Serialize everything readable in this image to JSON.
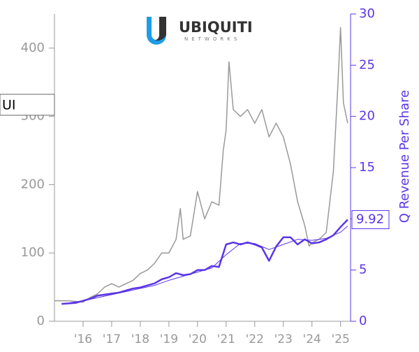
{
  "chart_data": {
    "type": "line",
    "logo": {
      "name": "UBIQUITI",
      "sub": "NETWORKS"
    },
    "annotation": "UI",
    "y2label": "Q Revenue Per Share",
    "xlim": [
      2015,
      2025.35
    ],
    "xticks": [
      {
        "value": 2016,
        "label": "'16"
      },
      {
        "value": 2017,
        "label": "'17"
      },
      {
        "value": 2018,
        "label": "'18"
      },
      {
        "value": 2019,
        "label": "'19"
      },
      {
        "value": 2020,
        "label": "'20"
      },
      {
        "value": 2021,
        "label": "'21"
      },
      {
        "value": 2022,
        "label": "'22"
      },
      {
        "value": 2023,
        "label": "'23"
      },
      {
        "value": 2024,
        "label": "'24"
      },
      {
        "value": 2025,
        "label": "'25"
      }
    ],
    "ylim": [
      0,
      450
    ],
    "yticks": [
      0,
      100,
      200,
      300,
      400
    ],
    "y2lim": [
      0,
      30
    ],
    "y2ticks": [
      0,
      5,
      10,
      15,
      20,
      25,
      30
    ],
    "series": [
      {
        "color": "#999999",
        "width": 1.5,
        "x": [
          2015.0,
          2015.5,
          2016.0,
          2016.25,
          2016.5,
          2016.75,
          2017.0,
          2017.25,
          2017.5,
          2017.75,
          2018.0,
          2018.25,
          2018.5,
          2018.75,
          2019.0,
          2019.25,
          2019.4,
          2019.5,
          2019.75,
          2020.0,
          2020.25,
          2020.5,
          2020.75,
          2020.9,
          2021.0,
          2021.1,
          2021.25,
          2021.5,
          2021.75,
          2022.0,
          2022.25,
          2022.5,
          2022.75,
          2023.0,
          2023.25,
          2023.5,
          2023.75,
          2023.9,
          2024.0,
          2024.25,
          2024.5,
          2024.75,
          2024.9,
          2025.0,
          2025.1,
          2025.25
        ],
        "values": [
          30,
          30,
          28,
          35,
          40,
          50,
          55,
          50,
          55,
          60,
          70,
          75,
          85,
          100,
          100,
          120,
          165,
          120,
          125,
          190,
          150,
          175,
          170,
          250,
          280,
          380,
          310,
          300,
          310,
          290,
          310,
          270,
          290,
          270,
          230,
          175,
          140,
          110,
          115,
          120,
          130,
          220,
          340,
          430,
          320,
          290
        ]
      },
      {
        "color": "#5b35e8",
        "width": 2.5,
        "axis": "y2",
        "x": [
          2015.25,
          2015.75,
          2016.0,
          2016.25,
          2016.5,
          2016.75,
          2017.0,
          2017.25,
          2017.5,
          2017.75,
          2018.0,
          2018.25,
          2018.5,
          2018.75,
          2019.0,
          2019.25,
          2019.5,
          2019.75,
          2020.0,
          2020.25,
          2020.5,
          2020.75,
          2021.0,
          2021.25,
          2021.5,
          2021.75,
          2022.0,
          2022.25,
          2022.5,
          2022.75,
          2023.0,
          2023.25,
          2023.5,
          2023.75,
          2024.0,
          2024.25,
          2024.5,
          2024.75,
          2025.0,
          2025.25
        ],
        "values": [
          1.7,
          1.8,
          2.0,
          2.2,
          2.5,
          2.6,
          2.7,
          2.8,
          3.0,
          3.2,
          3.3,
          3.5,
          3.7,
          4.1,
          4.3,
          4.7,
          4.5,
          4.6,
          5.0,
          5.0,
          5.4,
          5.3,
          7.5,
          7.7,
          7.5,
          7.7,
          7.5,
          7.2,
          5.9,
          7.3,
          8.2,
          8.2,
          7.5,
          8.0,
          7.6,
          7.7,
          8.0,
          8.4,
          9.2,
          9.92
        ]
      },
      {
        "color": "#5b35e8",
        "width": 1,
        "axis": "y2",
        "x": [
          2015.5,
          2016.0,
          2016.5,
          2017.0,
          2017.5,
          2018.0,
          2018.5,
          2019.0,
          2019.5,
          2020.0,
          2020.5,
          2021.0,
          2021.5,
          2022.0,
          2022.5,
          2023.0,
          2023.5,
          2024.0,
          2024.5,
          2025.0,
          2025.25
        ],
        "values": [
          1.8,
          2.0,
          2.3,
          2.6,
          2.9,
          3.2,
          3.5,
          4.0,
          4.4,
          4.8,
          5.2,
          6.5,
          7.6,
          7.6,
          7.0,
          7.5,
          8.0,
          7.9,
          8.1,
          8.7,
          9.3
        ]
      }
    ]
  }
}
